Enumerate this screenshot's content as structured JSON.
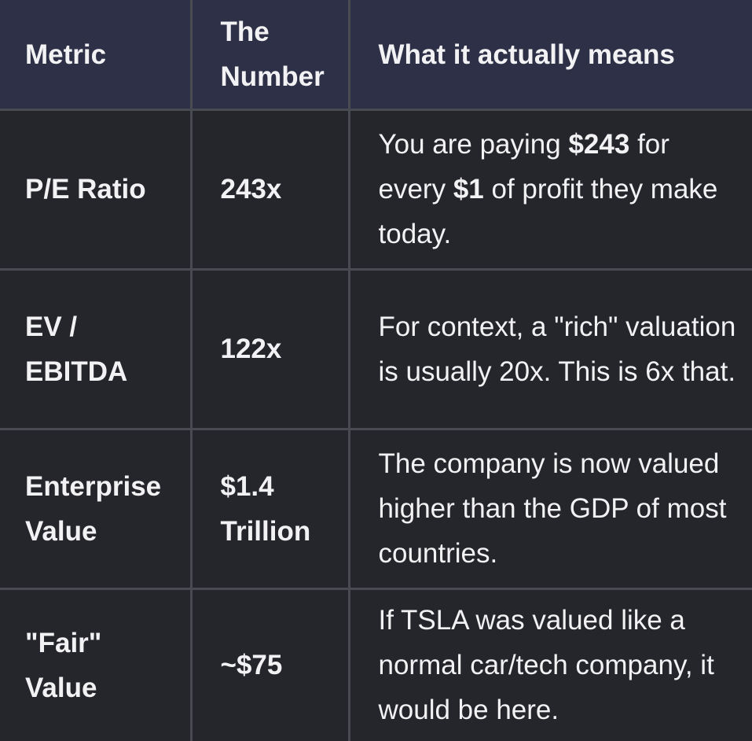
{
  "table": {
    "headers": [
      "Metric",
      "The Number",
      "What it actually means"
    ],
    "rows": [
      {
        "metric": "P/E Ratio",
        "number": "243x",
        "meaning_parts": [
          {
            "text": "You are paying ",
            "bold": false
          },
          {
            "text": "$243",
            "bold": true
          },
          {
            "text": " for every ",
            "bold": false
          },
          {
            "text": "$1",
            "bold": true
          },
          {
            "text": " of profit they make today.",
            "bold": false
          }
        ]
      },
      {
        "metric": "EV / EBITDA",
        "number": "122x",
        "meaning_parts": [
          {
            "text": "For context, a \"rich\" valuation is usually 20x. This is 6x that.",
            "bold": false
          }
        ]
      },
      {
        "metric": "Enterprise Value",
        "number": "$1.4 Trillion",
        "meaning_parts": [
          {
            "text": "The company is now valued higher than the GDP of most countries.",
            "bold": false
          }
        ]
      },
      {
        "metric": "\"Fair\" Value",
        "number": "~$75",
        "meaning_parts": [
          {
            "text": "If TSLA was valued like a normal car/tech company, it would be here.",
            "bold": false
          }
        ]
      }
    ]
  },
  "colors": {
    "header_bg": "#2d3046",
    "cell_bg": "#25252c",
    "border": "#4a4a52",
    "text": "#f2f2f4"
  }
}
